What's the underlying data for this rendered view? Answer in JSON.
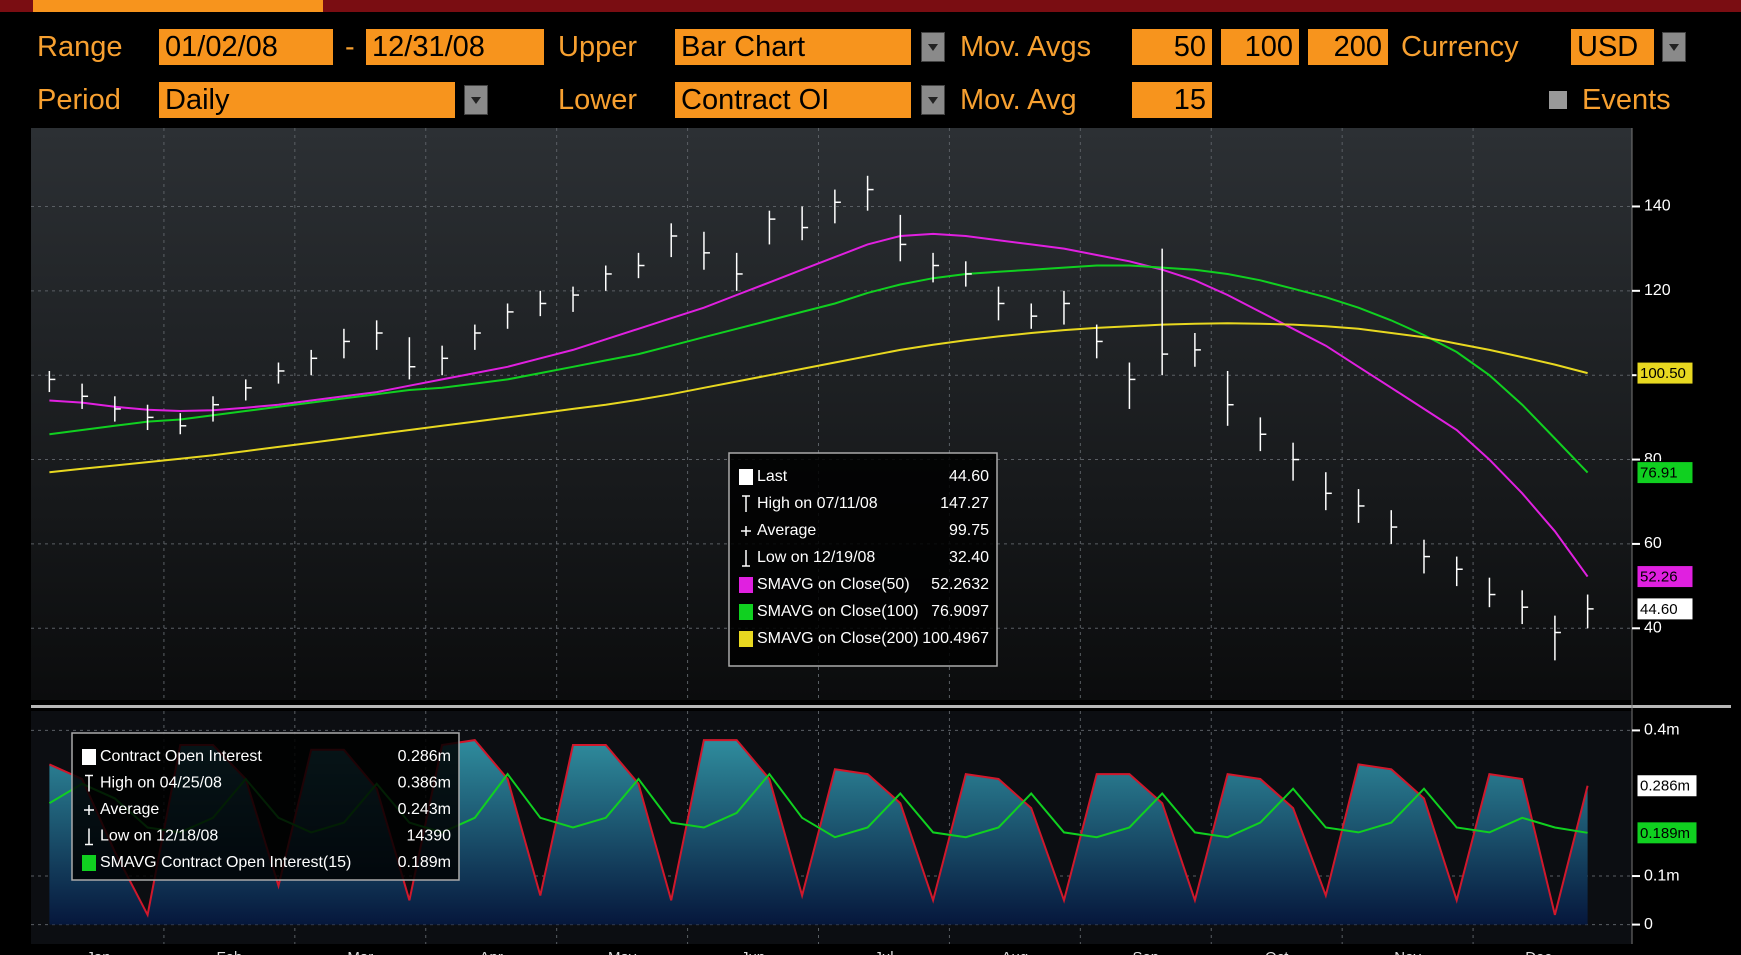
{
  "toolbar": {
    "range_label": "Range",
    "range_start": "01/02/08",
    "range_sep": "-",
    "range_end": "12/31/08",
    "upper_label": "Upper",
    "upper_value": "Bar Chart",
    "mov_avgs_label": "Mov. Avgs",
    "mov_avgs": [
      50,
      100,
      200
    ],
    "currency_label": "Currency",
    "currency": "USD",
    "period_label": "Period",
    "period": "Daily",
    "lower_label": "Lower",
    "lower_value": "Contract OI",
    "mov_avg_label": "Mov. Avg",
    "mov_avg": 15,
    "events": "Events"
  },
  "chart_data": [
    {
      "type": "ohlc",
      "ylim": [
        23,
        158.6
      ],
      "yticks": [
        40,
        60,
        80,
        100,
        120,
        140
      ],
      "grid": true,
      "series": [
        {
          "name": "Last",
          "color": "#ffffff",
          "legend_value": "44.60",
          "badge": "44.60",
          "values": [
            99,
            95,
            92,
            90,
            88,
            93,
            97,
            101,
            104,
            108,
            110,
            102,
            104,
            110,
            115,
            117,
            119,
            124,
            126,
            133,
            129,
            124,
            137,
            135,
            141,
            144,
            131,
            126,
            124,
            117,
            114,
            117,
            108,
            99,
            105,
            106,
            93,
            86,
            80,
            72,
            69,
            64,
            57,
            54,
            48,
            45,
            39,
            44.6
          ],
          "high": [
            101,
            98,
            95,
            93,
            91,
            95,
            99,
            103,
            106,
            111,
            113,
            109,
            107,
            112,
            117,
            120,
            121,
            126,
            129,
            136,
            134,
            129,
            139,
            140,
            144,
            147.27,
            138,
            129,
            127,
            121,
            117,
            120,
            112,
            103,
            130,
            110,
            101,
            90,
            84,
            77,
            73,
            68,
            61,
            57,
            52,
            49,
            43,
            48
          ],
          "low": [
            96,
            92,
            89,
            87,
            86,
            89,
            94,
            98,
            100,
            104,
            106,
            99,
            100,
            106,
            111,
            114,
            115,
            120,
            123,
            128,
            125,
            120,
            131,
            132,
            136,
            139,
            127,
            122,
            121,
            113,
            111,
            112,
            104,
            92,
            100,
            102,
            88,
            82,
            75,
            68,
            65,
            60,
            53,
            50,
            45,
            41,
            32.4,
            40
          ]
        },
        {
          "name": "SMAVG on Close(50)",
          "color": "#e020e0",
          "legend_value": "52.2632",
          "badge": "52.26",
          "values": [
            94,
            93.5,
            92.5,
            91.8,
            91.5,
            91.7,
            92.3,
            93,
            94,
            95,
            96,
            97.5,
            99,
            100.5,
            102,
            104,
            106,
            108.5,
            111,
            113.5,
            116,
            119,
            122,
            125,
            128,
            131,
            133,
            133.5,
            133,
            132,
            131,
            130,
            128.5,
            127,
            125,
            122.5,
            119,
            115,
            111,
            107,
            102,
            97,
            92,
            87,
            80,
            72,
            63,
            52.26
          ]
        },
        {
          "name": "SMAVG on Close(100)",
          "color": "#10d020",
          "legend_value": "76.9097",
          "badge": "76.91",
          "values": [
            86,
            87,
            88,
            89,
            89.5,
            90.5,
            91.5,
            92.5,
            93.5,
            94.5,
            95.5,
            96.5,
            97,
            98,
            99,
            100.5,
            102,
            103.5,
            105,
            107,
            109,
            111,
            113,
            115,
            117,
            119.5,
            121.5,
            123,
            124,
            124.5,
            125,
            125.5,
            126,
            126,
            125.5,
            125,
            124,
            122.5,
            120.5,
            118.5,
            116,
            113,
            109.5,
            105.5,
            100,
            93,
            85,
            76.91
          ]
        },
        {
          "name": "SMAVG on Close(200)",
          "color": "#e8d820",
          "legend_value": "100.4967",
          "badge": "100.50",
          "values": [
            77,
            77.8,
            78.6,
            79.4,
            80.2,
            81,
            82,
            83,
            84,
            85,
            86,
            87,
            88,
            89,
            90,
            91,
            92,
            93,
            94.2,
            95.5,
            97,
            98.5,
            100,
            101.5,
            103,
            104.5,
            106,
            107.2,
            108.3,
            109.2,
            110,
            110.7,
            111.2,
            111.6,
            112,
            112.2,
            112.3,
            112.2,
            112,
            111.6,
            111,
            110,
            109,
            107.5,
            106,
            104.3,
            102.5,
            100.5
          ]
        }
      ],
      "stats": [
        {
          "label": "High on 07/11/08",
          "value": "147.27"
        },
        {
          "label": "Average",
          "value": "99.75"
        },
        {
          "label": "Low on 12/19/08",
          "value": "32.40"
        }
      ]
    },
    {
      "type": "area",
      "categories": [
        "Jan",
        null,
        null,
        null,
        "Feb",
        null,
        null,
        null,
        "Mar",
        null,
        null,
        null,
        "Apr",
        null,
        null,
        null,
        "May",
        null,
        null,
        null,
        "Jun",
        null,
        null,
        null,
        "Jul",
        null,
        null,
        null,
        "Aug",
        null,
        null,
        null,
        "Sep",
        null,
        null,
        null,
        "Oct",
        null,
        null,
        null,
        "Nov",
        null,
        null,
        null,
        "Dec",
        null,
        null,
        null
      ],
      "ylim": [
        -0.04,
        0.44
      ],
      "yticks": [
        {
          "value": 0,
          "label": "0"
        },
        {
          "value": 0.1,
          "label": "0.1m"
        },
        {
          "value": 0.4,
          "label": "0.4m"
        }
      ],
      "grid": true,
      "series": [
        {
          "name": "Contract Open Interest",
          "color": "#ffffff",
          "fill": "#2a8597",
          "edge": "#d0182c",
          "legend_value": "0.286m",
          "badge": "0.286m",
          "values": [
            0.33,
            0.3,
            0.15,
            0.02,
            0.37,
            0.37,
            0.3,
            0.08,
            0.36,
            0.36,
            0.28,
            0.05,
            0.37,
            0.38,
            0.3,
            0.06,
            0.37,
            0.37,
            0.29,
            0.05,
            0.38,
            0.38,
            0.3,
            0.06,
            0.32,
            0.31,
            0.25,
            0.05,
            0.31,
            0.3,
            0.24,
            0.05,
            0.31,
            0.31,
            0.25,
            0.05,
            0.31,
            0.3,
            0.24,
            0.06,
            0.33,
            0.32,
            0.26,
            0.05,
            0.31,
            0.3,
            0.02,
            0.286
          ]
        },
        {
          "name": "SMAVG Contract Open Interest(15)",
          "color": "#10d020",
          "legend_value": "0.189m",
          "badge": "0.189m",
          "values": [
            0.25,
            0.29,
            0.26,
            0.2,
            0.19,
            0.22,
            0.3,
            0.22,
            0.19,
            0.21,
            0.29,
            0.21,
            0.19,
            0.22,
            0.31,
            0.22,
            0.2,
            0.22,
            0.3,
            0.21,
            0.2,
            0.23,
            0.31,
            0.22,
            0.18,
            0.2,
            0.27,
            0.19,
            0.18,
            0.2,
            0.27,
            0.19,
            0.18,
            0.2,
            0.27,
            0.19,
            0.18,
            0.21,
            0.28,
            0.2,
            0.19,
            0.21,
            0.28,
            0.2,
            0.19,
            0.22,
            0.2,
            0.189
          ]
        }
      ],
      "stats": [
        {
          "label": "High on 04/25/08",
          "value": "0.386m"
        },
        {
          "label": "Average",
          "value": "0.243m"
        },
        {
          "label": "Low on 12/18/08",
          "value": "14390"
        }
      ]
    }
  ]
}
